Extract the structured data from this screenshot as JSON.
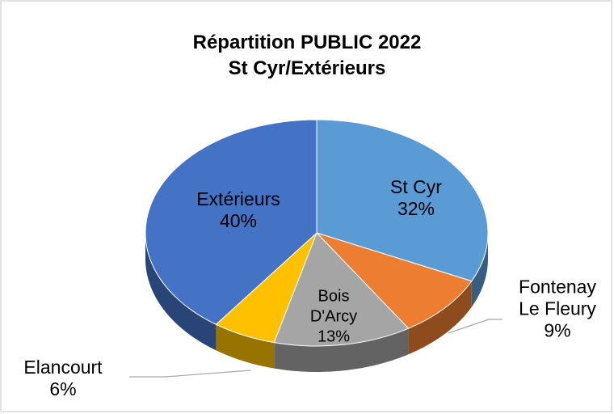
{
  "chart_data": {
    "type": "pie3d",
    "title": "Répartition PUBLIC 2022",
    "subtitle": "St Cyr/Extérieurs",
    "categories": [
      "St Cyr",
      "Fontenay Le Fleury",
      "Bois D'Arcy",
      "Elancourt",
      "Extérieurs"
    ],
    "values": [
      32,
      9,
      13,
      6,
      40
    ],
    "value_labels": [
      "32%",
      "9%",
      "13%",
      "6%",
      "40%"
    ],
    "colors": [
      "#5b9bd5",
      "#ed7d31",
      "#a5a5a5",
      "#ffc000",
      "#4472c4"
    ]
  }
}
